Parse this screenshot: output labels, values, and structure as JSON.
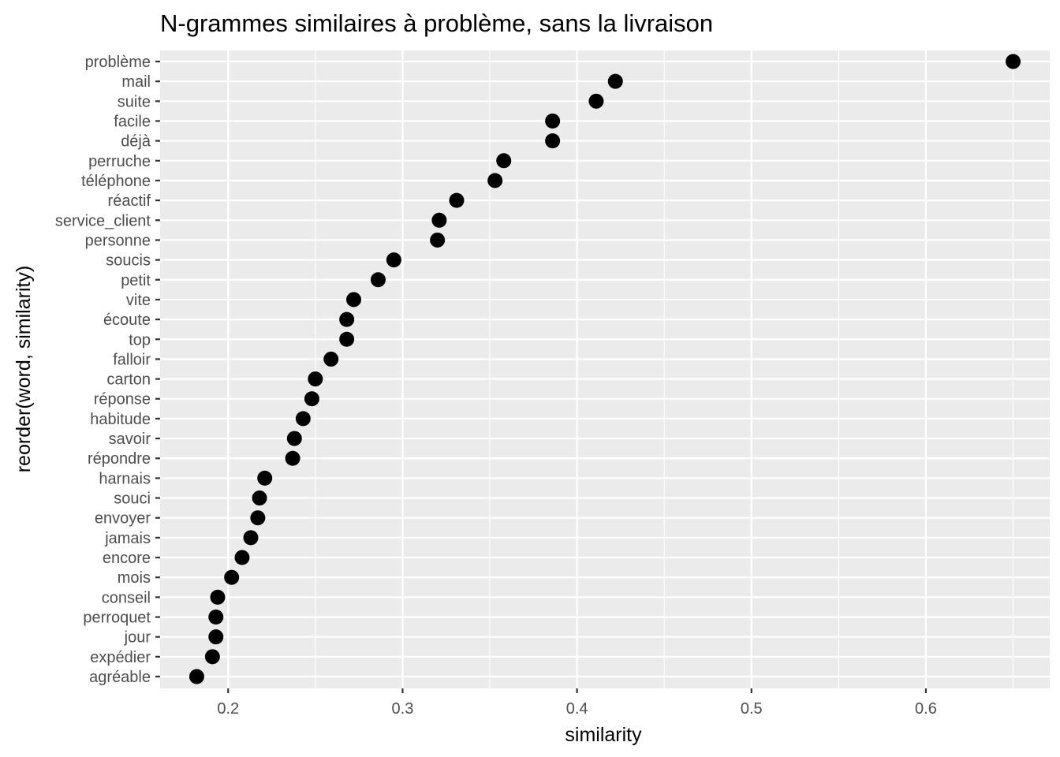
{
  "chart_data": {
    "type": "scatter",
    "title": "N-grammes similaires à problème, sans la livraison",
    "xlabel": "similarity",
    "ylabel": "reorder(word, similarity)",
    "xlim": [
      0.161,
      0.671
    ],
    "xticks": [
      0.2,
      0.3,
      0.4,
      0.5,
      0.6
    ],
    "xtick_labels": [
      "0.2",
      "0.3",
      "0.4",
      "0.5",
      "0.6"
    ],
    "grid": true,
    "point_color": "#000000",
    "panel_color": "#ebebeb",
    "categories": [
      "problème",
      "mail",
      "suite",
      "facile",
      "déjà",
      "perruche",
      "téléphone",
      "réactif",
      "service_client",
      "personne",
      "soucis",
      "petit",
      "vite",
      "écoute",
      "top",
      "falloir",
      "carton",
      "réponse",
      "habitude",
      "savoir",
      "répondre",
      "harnais",
      "souci",
      "envoyer",
      "jamais",
      "encore",
      "mois",
      "conseil",
      "perroquet",
      "jour",
      "expédier",
      "agréable"
    ],
    "values": [
      0.65,
      0.422,
      0.411,
      0.386,
      0.386,
      0.358,
      0.353,
      0.331,
      0.321,
      0.32,
      0.295,
      0.286,
      0.272,
      0.268,
      0.268,
      0.259,
      0.25,
      0.248,
      0.243,
      0.238,
      0.237,
      0.221,
      0.218,
      0.217,
      0.213,
      0.208,
      0.202,
      0.194,
      0.193,
      0.193,
      0.191,
      0.182
    ]
  }
}
